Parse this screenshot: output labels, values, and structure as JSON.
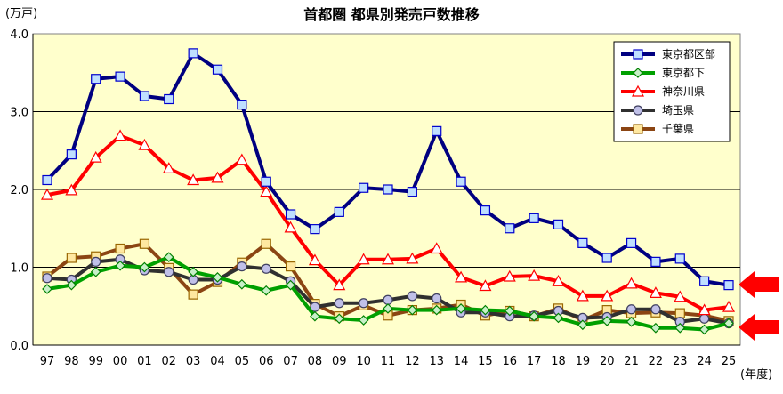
{
  "chart_data": {
    "type": "line",
    "title": "首都圏 都県別発売戸数推移",
    "ylabel": "(万戸)",
    "xlabel": "(年度)",
    "ylim": [
      0,
      4
    ],
    "yticks": [
      "0.0",
      "1.0",
      "2.0",
      "3.0",
      "4.0"
    ],
    "categories": [
      "97",
      "98",
      "99",
      "00",
      "01",
      "02",
      "03",
      "04",
      "05",
      "06",
      "07",
      "08",
      "09",
      "10",
      "11",
      "12",
      "13",
      "14",
      "15",
      "16",
      "17",
      "18",
      "19",
      "20",
      "21",
      "22",
      "23",
      "24",
      "25"
    ],
    "legend_position": "top-right",
    "plot_background": "#FFFFCC",
    "grid": "horizontal",
    "series": [
      {
        "name": "東京都区部",
        "color": "#000080",
        "marker": "square",
        "marker_fill": "#BFDFFF",
        "marker_stroke": "#0000CC",
        "values": [
          2.12,
          2.45,
          3.42,
          3.45,
          3.2,
          3.16,
          3.75,
          3.54,
          3.09,
          2.1,
          1.68,
          1.49,
          1.71,
          2.02,
          2.0,
          1.97,
          2.75,
          2.1,
          1.73,
          1.5,
          1.63,
          1.55,
          1.31,
          1.12,
          1.31,
          1.07,
          1.11,
          0.82,
          0.77
        ]
      },
      {
        "name": "東京都下",
        "color": "#00A000",
        "marker": "diamond",
        "marker_fill": "#C8F0C8",
        "marker_stroke": "#008000",
        "values": [
          0.72,
          0.77,
          0.94,
          1.02,
          1.0,
          1.13,
          0.94,
          0.87,
          0.78,
          0.7,
          0.77,
          0.37,
          0.34,
          0.32,
          0.47,
          0.45,
          0.45,
          0.47,
          0.45,
          0.44,
          0.37,
          0.35,
          0.26,
          0.31,
          0.3,
          0.22,
          0.22,
          0.2,
          0.28
        ]
      },
      {
        "name": "神奈川県",
        "color": "#FF0000",
        "marker": "triangle",
        "marker_fill": "#FFFFFF",
        "marker_stroke": "#FF0000",
        "values": [
          1.93,
          1.99,
          2.41,
          2.69,
          2.57,
          2.27,
          2.12,
          2.15,
          2.38,
          1.97,
          1.51,
          1.09,
          0.77,
          1.1,
          1.1,
          1.11,
          1.24,
          0.87,
          0.76,
          0.88,
          0.89,
          0.82,
          0.63,
          0.63,
          0.79,
          0.67,
          0.62,
          0.45,
          0.49
        ]
      },
      {
        "name": "埼玉県",
        "color": "#303030",
        "marker": "circle",
        "marker_fill": "#C0C0E8",
        "marker_stroke": "#404060",
        "values": [
          0.86,
          0.84,
          1.07,
          1.1,
          0.96,
          0.94,
          0.84,
          0.84,
          1.01,
          0.98,
          0.82,
          0.49,
          0.54,
          0.54,
          0.58,
          0.63,
          0.6,
          0.42,
          0.42,
          0.37,
          0.38,
          0.44,
          0.35,
          0.36,
          0.46,
          0.46,
          0.3,
          0.34,
          0.28
        ]
      },
      {
        "name": "千葉県",
        "color": "#8B4513",
        "marker": "square",
        "marker_fill": "#FFE8A0",
        "marker_stroke": "#996600",
        "values": [
          0.88,
          1.12,
          1.14,
          1.24,
          1.3,
          0.99,
          0.65,
          0.81,
          1.06,
          1.3,
          1.01,
          0.53,
          0.37,
          0.51,
          0.38,
          0.45,
          0.47,
          0.52,
          0.38,
          0.44,
          0.37,
          0.47,
          0.32,
          0.45,
          0.41,
          0.42,
          0.41,
          0.38,
          0.31
        ]
      }
    ]
  }
}
